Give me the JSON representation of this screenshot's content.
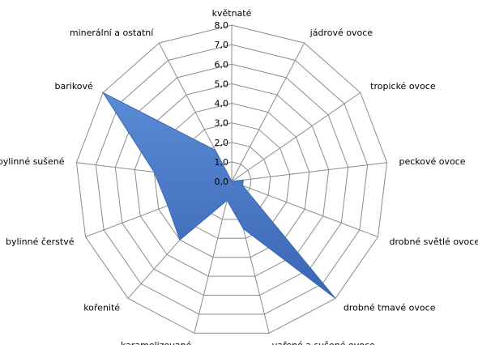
{
  "chart_data": {
    "type": "radar",
    "title": "",
    "categories": [
      "květnaté",
      "jádrové ovoce",
      "tropické ovoce",
      "peckové ovoce",
      "drobné světlé ovoce",
      "drobné tmavé ovoce",
      "vařené a sušené ovoce",
      "karamelizované",
      "kořenité",
      "bylinné čerstvé",
      "bylinné sušené",
      "barikové",
      "minerální a ostatní"
    ],
    "series": [
      {
        "values": [
          0,
          0,
          0,
          0.6,
          0.6,
          8.0,
          2.5,
          1.0,
          4.0,
          3.5,
          4.0,
          8.0,
          1.8
        ],
        "color": "#4472c4"
      }
    ],
    "rlim": [
      0,
      8
    ],
    "ticks": [
      "0,0",
      "1,0",
      "2,0",
      "3,0",
      "4,0",
      "5,0",
      "6,0",
      "7,0",
      "8,0"
    ],
    "grid": true,
    "legend": "none"
  }
}
